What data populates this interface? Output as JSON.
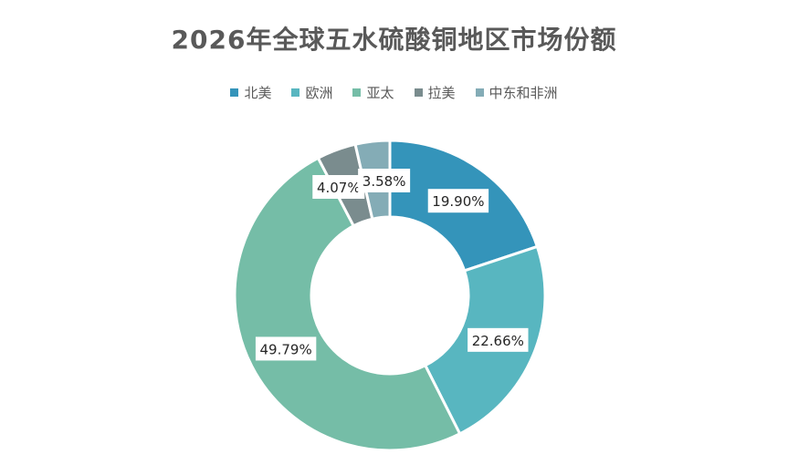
{
  "chart_data": {
    "type": "pie",
    "title": "2026年全球五水硫酸铜地区市场份额",
    "categories": [
      "北美",
      "欧洲",
      "亚太",
      "拉美",
      "中东和非洲"
    ],
    "values": [
      19.9,
      22.66,
      49.79,
      4.07,
      3.58
    ],
    "value_labels": [
      "19.90%",
      "22.66%",
      "49.79%",
      "4.07%",
      "3.58%"
    ],
    "colors": [
      "#3494BA",
      "#58B6C0",
      "#75BDA7",
      "#7A8C8E",
      "#84ACB6"
    ],
    "legend_position": "top",
    "donut": true
  }
}
